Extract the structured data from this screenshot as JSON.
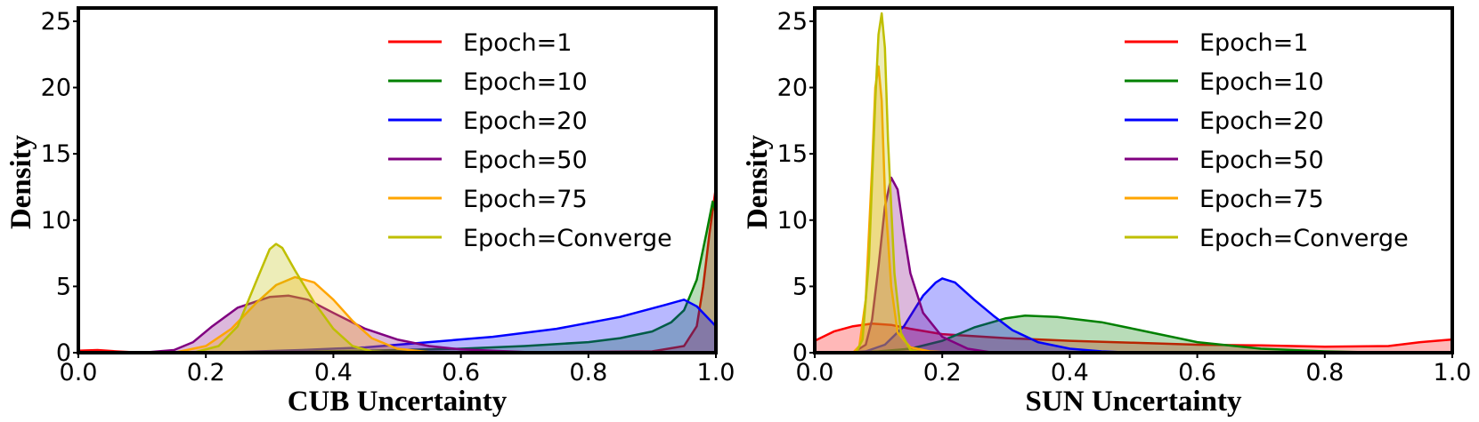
{
  "chart_data": [
    {
      "type": "area",
      "title": "",
      "xlabel": "CUB Uncertainty",
      "ylabel": "Density",
      "xlim": [
        0,
        1
      ],
      "ylim": [
        0,
        26
      ],
      "xticks": [
        "0.0",
        "0.2",
        "0.4",
        "0.6",
        "0.8",
        "1.0"
      ],
      "yticks": [
        "0",
        "5",
        "10",
        "15",
        "20",
        "25"
      ],
      "legend_position": "top-right",
      "series": [
        {
          "name": "Epoch=1",
          "color": "#ff0000",
          "points": [
            [
              0,
              0.15
            ],
            [
              0.03,
              0.2
            ],
            [
              0.06,
              0.1
            ],
            [
              0.1,
              0
            ],
            [
              0.3,
              0
            ],
            [
              0.6,
              0
            ],
            [
              0.9,
              0.1
            ],
            [
              0.95,
              0.5
            ],
            [
              0.97,
              2
            ],
            [
              0.98,
              5
            ],
            [
              0.99,
              9
            ],
            [
              1.0,
              12.5
            ]
          ]
        },
        {
          "name": "Epoch=10",
          "color": "#008000",
          "points": [
            [
              0.15,
              0
            ],
            [
              0.3,
              0.05
            ],
            [
              0.45,
              0.15
            ],
            [
              0.6,
              0.3
            ],
            [
              0.7,
              0.5
            ],
            [
              0.8,
              0.8
            ],
            [
              0.85,
              1.1
            ],
            [
              0.9,
              1.6
            ],
            [
              0.93,
              2.3
            ],
            [
              0.95,
              3.2
            ],
            [
              0.97,
              5.5
            ],
            [
              0.985,
              9
            ],
            [
              0.995,
              11.4
            ],
            [
              1.0,
              10.5
            ]
          ]
        },
        {
          "name": "Epoch=20",
          "color": "#0000ff",
          "points": [
            [
              0.15,
              0
            ],
            [
              0.25,
              0.05
            ],
            [
              0.35,
              0.2
            ],
            [
              0.45,
              0.4
            ],
            [
              0.55,
              0.8
            ],
            [
              0.65,
              1.2
            ],
            [
              0.75,
              1.8
            ],
            [
              0.85,
              2.7
            ],
            [
              0.92,
              3.6
            ],
            [
              0.95,
              4.0
            ],
            [
              0.97,
              3.5
            ],
            [
              0.99,
              2.5
            ],
            [
              1.0,
              2.0
            ]
          ]
        },
        {
          "name": "Epoch=50",
          "color": "#800080",
          "points": [
            [
              0.1,
              0
            ],
            [
              0.15,
              0.2
            ],
            [
              0.18,
              0.8
            ],
            [
              0.21,
              2.0
            ],
            [
              0.25,
              3.4
            ],
            [
              0.3,
              4.2
            ],
            [
              0.33,
              4.3
            ],
            [
              0.36,
              4.0
            ],
            [
              0.4,
              3.0
            ],
            [
              0.45,
              1.8
            ],
            [
              0.5,
              1.0
            ],
            [
              0.55,
              0.5
            ],
            [
              0.6,
              0.25
            ],
            [
              0.7,
              0.05
            ],
            [
              0.8,
              0
            ]
          ]
        },
        {
          "name": "Epoch=75",
          "color": "#ffa500",
          "points": [
            [
              0.15,
              0
            ],
            [
              0.2,
              0.5
            ],
            [
              0.24,
              1.8
            ],
            [
              0.28,
              3.8
            ],
            [
              0.31,
              5.1
            ],
            [
              0.34,
              5.7
            ],
            [
              0.37,
              5.3
            ],
            [
              0.4,
              4.0
            ],
            [
              0.43,
              2.4
            ],
            [
              0.46,
              1.1
            ],
            [
              0.5,
              0.3
            ],
            [
              0.55,
              0.05
            ],
            [
              0.6,
              0
            ]
          ]
        },
        {
          "name": "Epoch=Converge",
          "color": "#bfbf00",
          "points": [
            [
              0.18,
              0
            ],
            [
              0.22,
              0.5
            ],
            [
              0.25,
              2.0
            ],
            [
              0.28,
              5.5
            ],
            [
              0.3,
              7.8
            ],
            [
              0.31,
              8.2
            ],
            [
              0.32,
              7.9
            ],
            [
              0.34,
              6.2
            ],
            [
              0.37,
              3.8
            ],
            [
              0.4,
              1.8
            ],
            [
              0.43,
              0.5
            ],
            [
              0.46,
              0.1
            ],
            [
              0.5,
              0
            ]
          ]
        }
      ]
    },
    {
      "type": "area",
      "title": "",
      "xlabel": "SUN Uncertainty",
      "ylabel": "Density",
      "xlim": [
        0,
        1
      ],
      "ylim": [
        0,
        26
      ],
      "xticks": [
        "0.0",
        "0.2",
        "0.4",
        "0.6",
        "0.8",
        "1.0"
      ],
      "yticks": [
        "0",
        "5",
        "10",
        "15",
        "20",
        "25"
      ],
      "legend_position": "top-right",
      "series": [
        {
          "name": "Epoch=1",
          "color": "#ff0000",
          "points": [
            [
              0,
              0.9
            ],
            [
              0.03,
              1.6
            ],
            [
              0.06,
              2.0
            ],
            [
              0.09,
              2.2
            ],
            [
              0.12,
              2.1
            ],
            [
              0.15,
              1.8
            ],
            [
              0.2,
              1.4
            ],
            [
              0.3,
              1.1
            ],
            [
              0.4,
              0.9
            ],
            [
              0.5,
              0.75
            ],
            [
              0.6,
              0.6
            ],
            [
              0.7,
              0.55
            ],
            [
              0.8,
              0.45
            ],
            [
              0.9,
              0.5
            ],
            [
              0.95,
              0.8
            ],
            [
              1.0,
              1.0
            ]
          ]
        },
        {
          "name": "Epoch=10",
          "color": "#008000",
          "points": [
            [
              0.05,
              0
            ],
            [
              0.1,
              0.1
            ],
            [
              0.15,
              0.3
            ],
            [
              0.2,
              0.9
            ],
            [
              0.25,
              1.9
            ],
            [
              0.3,
              2.6
            ],
            [
              0.33,
              2.8
            ],
            [
              0.38,
              2.7
            ],
            [
              0.45,
              2.3
            ],
            [
              0.5,
              1.8
            ],
            [
              0.55,
              1.3
            ],
            [
              0.6,
              0.8
            ],
            [
              0.7,
              0.3
            ],
            [
              0.8,
              0.1
            ],
            [
              0.9,
              0
            ]
          ]
        },
        {
          "name": "Epoch=20",
          "color": "#0000ff",
          "points": [
            [
              0.05,
              0
            ],
            [
              0.08,
              0.1
            ],
            [
              0.11,
              0.6
            ],
            [
              0.14,
              2.0
            ],
            [
              0.17,
              4.3
            ],
            [
              0.19,
              5.3
            ],
            [
              0.2,
              5.6
            ],
            [
              0.22,
              5.3
            ],
            [
              0.25,
              4.0
            ],
            [
              0.28,
              2.8
            ],
            [
              0.31,
              1.7
            ],
            [
              0.35,
              0.8
            ],
            [
              0.4,
              0.3
            ],
            [
              0.45,
              0.1
            ],
            [
              0.5,
              0
            ]
          ]
        },
        {
          "name": "Epoch=50",
          "color": "#800080",
          "points": [
            [
              0.06,
              0
            ],
            [
              0.08,
              0.6
            ],
            [
              0.09,
              2.5
            ],
            [
              0.1,
              6.5
            ],
            [
              0.11,
              11.0
            ],
            [
              0.12,
              13.2
            ],
            [
              0.13,
              12.3
            ],
            [
              0.14,
              9.0
            ],
            [
              0.15,
              6.0
            ],
            [
              0.17,
              3.0
            ],
            [
              0.2,
              1.2
            ],
            [
              0.24,
              0.3
            ],
            [
              0.28,
              0
            ]
          ]
        },
        {
          "name": "Epoch=75",
          "color": "#ffa500",
          "points": [
            [
              0.06,
              0
            ],
            [
              0.07,
              0.5
            ],
            [
              0.08,
              4.0
            ],
            [
              0.09,
              14.0
            ],
            [
              0.095,
              20.0
            ],
            [
              0.1,
              21.6
            ],
            [
              0.105,
              19.0
            ],
            [
              0.11,
              12.0
            ],
            [
              0.12,
              5.0
            ],
            [
              0.13,
              1.5
            ],
            [
              0.15,
              0.4
            ],
            [
              0.18,
              0.1
            ],
            [
              0.22,
              0
            ]
          ]
        },
        {
          "name": "Epoch=Converge",
          "color": "#bfbf00",
          "points": [
            [
              0.065,
              0
            ],
            [
              0.075,
              1.0
            ],
            [
              0.085,
              7.0
            ],
            [
              0.095,
              19.0
            ],
            [
              0.1,
              24.0
            ],
            [
              0.105,
              25.6
            ],
            [
              0.11,
              23.0
            ],
            [
              0.115,
              16.0
            ],
            [
              0.125,
              6.0
            ],
            [
              0.135,
              1.5
            ],
            [
              0.15,
              0.2
            ],
            [
              0.17,
              0
            ]
          ]
        }
      ]
    }
  ]
}
